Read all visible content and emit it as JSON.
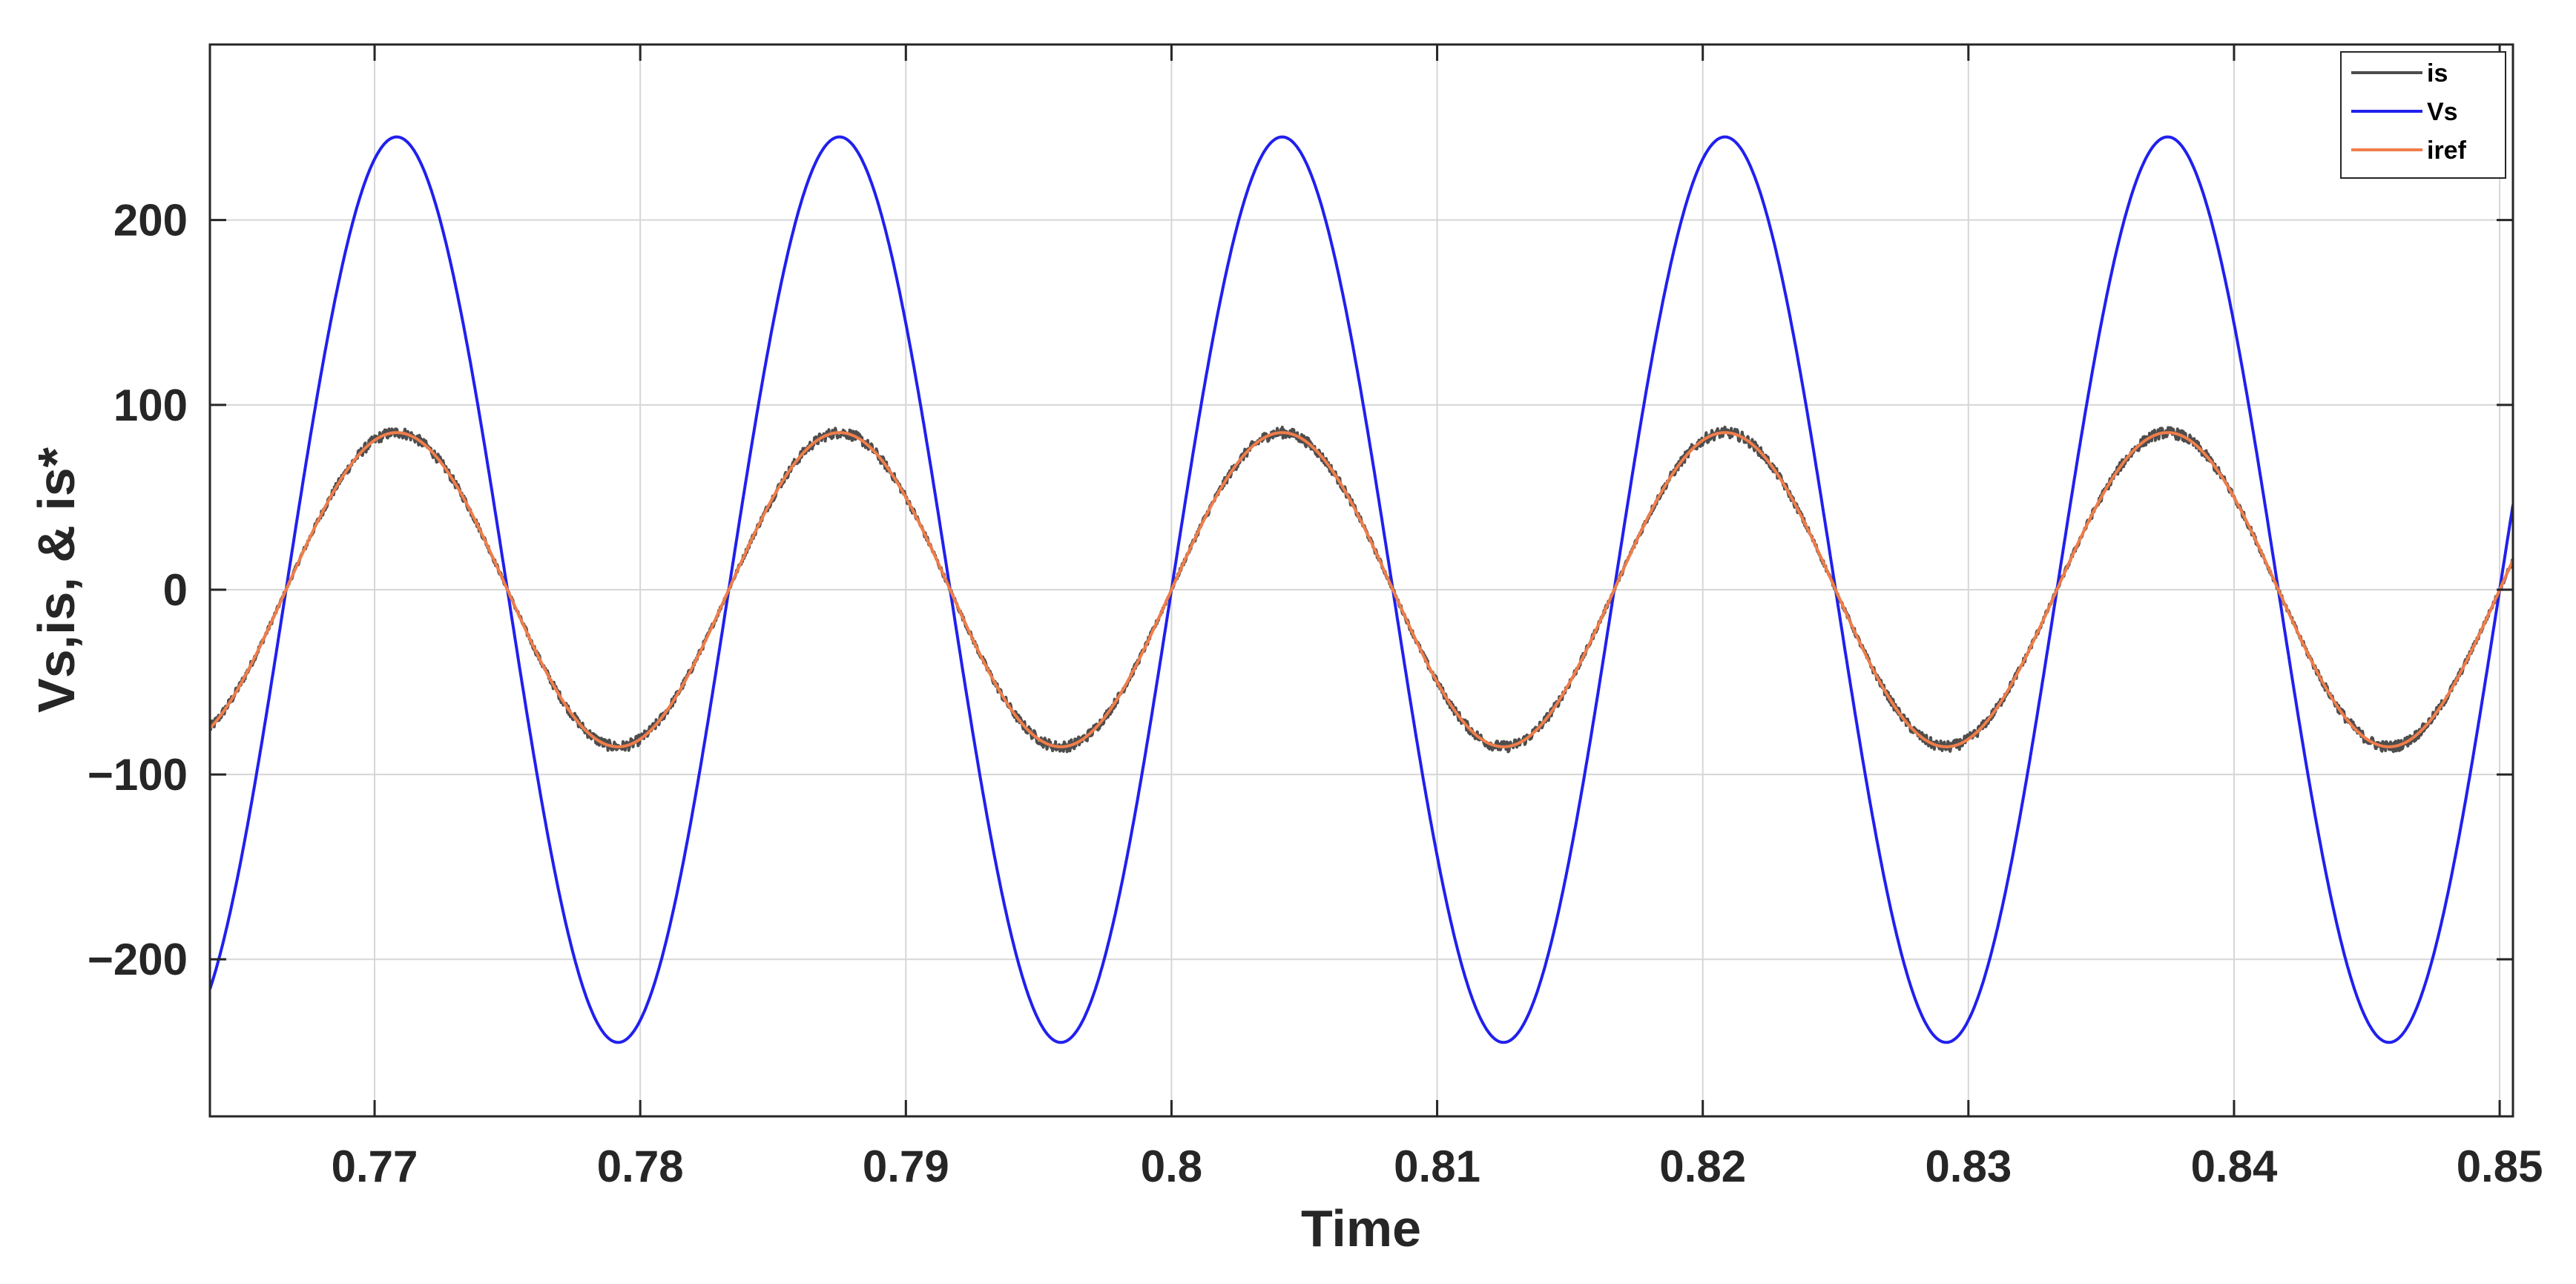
{
  "chart_data": {
    "type": "line",
    "title": "",
    "xlabel": "Time",
    "ylabel": "Vs,is, & is*",
    "xlim": [
      0.7638,
      0.8505
    ],
    "ylim": [
      -285,
      295
    ],
    "x_ticks": [
      0.77,
      0.78,
      0.79,
      0.8,
      0.81,
      0.82,
      0.83,
      0.84,
      0.85
    ],
    "x_tick_labels": [
      "0.77",
      "0.78",
      "0.79",
      "0.8",
      "0.81",
      "0.82",
      "0.83",
      "0.84",
      "0.85"
    ],
    "y_ticks": [
      -200,
      -100,
      0,
      100,
      200
    ],
    "y_tick_labels": [
      "−200",
      "−100",
      "0",
      "100",
      "200"
    ],
    "grid": true,
    "legend_position": "top-right",
    "frequency_hz": 60,
    "zero_crossing_time": 0.8,
    "series": [
      {
        "name": "is",
        "color": "#4d4d4d",
        "amplitude": 85,
        "noise": true
      },
      {
        "name": "Vs",
        "color": "#2020ee",
        "amplitude": 245,
        "noise": false
      },
      {
        "name": "iref",
        "color": "#f07d4a",
        "amplitude": 85,
        "noise": false
      }
    ]
  }
}
